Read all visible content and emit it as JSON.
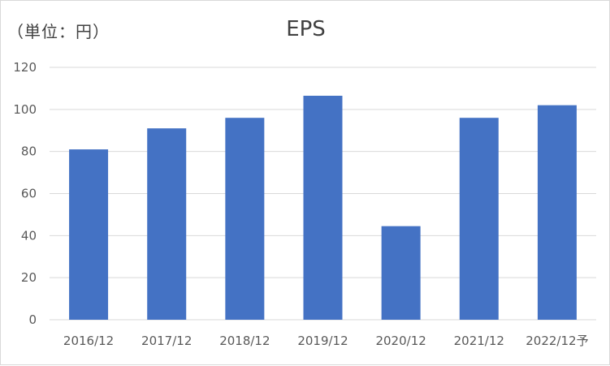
{
  "chart_data": {
    "type": "bar",
    "title": "EPS",
    "unit_label": "（単位：円）",
    "categories": [
      "2016/12",
      "2017/12",
      "2018/12",
      "2019/12",
      "2020/12",
      "2021/12",
      "2022/12予"
    ],
    "values": [
      81,
      91,
      96,
      106.5,
      44.5,
      96,
      102
    ],
    "ylim": [
      0,
      120
    ],
    "yticks": [
      0,
      20,
      40,
      60,
      80,
      100,
      120
    ],
    "grid": true,
    "legend": "none",
    "bar_color": "#4472c4",
    "grid_color": "#d9d9d9"
  }
}
